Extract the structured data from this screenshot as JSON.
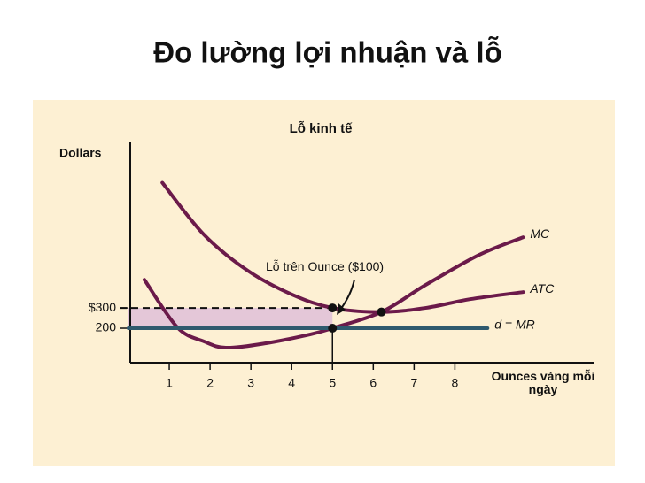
{
  "title": "Đo lường lợi nhuận và lỗ",
  "chart_data": {
    "type": "line",
    "title": "Lỗ kinh tế",
    "y_label": "Dollars",
    "x_label": "Ounces vàng mỗi ngày",
    "annotation": "Lỗ trên Ounce ($100)",
    "xlim": [
      0,
      11.4
    ],
    "ylim": [
      30,
      1120
    ],
    "xticks": [
      1,
      2,
      3,
      4,
      5,
      6,
      7,
      8
    ],
    "yticks": [
      {
        "value": 300,
        "label": "$300"
      },
      200
    ],
    "series": [
      {
        "name": "MC",
        "color": "#6b1a4a",
        "x": [
          0.39,
          1.2,
          1.85,
          2.4,
          3.37,
          4.46,
          5,
          6.2,
          7.28,
          8.59,
          9.67
        ],
        "values": [
          439,
          204,
          135,
          104,
          126,
          170,
          200,
          280,
          413,
          561,
          648
        ]
      },
      {
        "name": "ATC",
        "color": "#6b1a4a",
        "x": [
          0.83,
          1.85,
          2.93,
          4.02,
          5,
          6.2,
          7.28,
          8.37,
          9.67
        ],
        "values": [
          917,
          661,
          483,
          365,
          300,
          280,
          300,
          343,
          378
        ]
      },
      {
        "name": "d = MR",
        "color": "#2f5a6e",
        "x": [
          0,
          8.8
        ],
        "values": [
          200,
          200
        ]
      }
    ],
    "points": [
      {
        "x": 5,
        "y": 300
      },
      {
        "x": 5,
        "y": 200
      },
      {
        "x": 6.2,
        "y": 280
      }
    ],
    "shade_color": "#e4c7d8"
  }
}
